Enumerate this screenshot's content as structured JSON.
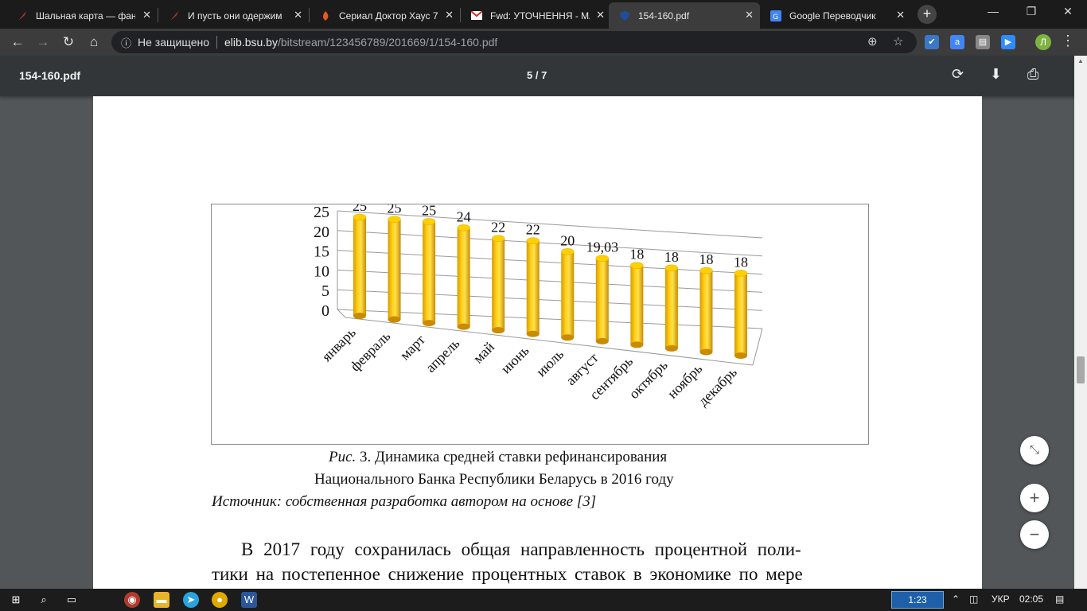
{
  "tabs": [
    {
      "title": "Шальная карта — фан",
      "favicon": "feather-icon"
    },
    {
      "title": "И пусть они одержим",
      "favicon": "feather-icon"
    },
    {
      "title": "Сериал Доктор Хаус 7",
      "favicon": "flame-icon"
    },
    {
      "title": "Fwd: УТОЧНЕННЯ - МА",
      "favicon": "gmail-icon"
    },
    {
      "title": "154-160.pdf",
      "favicon": "shield-icon"
    },
    {
      "title": "Google Переводчик",
      "favicon": "translate-icon"
    }
  ],
  "address": {
    "security": "Не защищено",
    "host": "elib.bsu.by",
    "path": "/bitstream/123456789/201669/1/154-160.pdf"
  },
  "profile_initial": "Л",
  "pdf": {
    "filename": "154-160.pdf",
    "page_indicator": "5 / 7"
  },
  "document": {
    "caption_prefix": "Рис.",
    "caption_line1": " 3. Динамика средней ставки рефинансирования",
    "caption_line2": "Национального Банка Республики Беларусь в 2016 году",
    "source_line": "Источник: собственная разработка автором на основе [3]",
    "para_line1": "В 2017 году сохранилась общая направленность процентной поли-",
    "para_line2": "тики на постепенное снижение процентных ставок в экономике по мере"
  },
  "chart_data": {
    "type": "bar",
    "categories": [
      "январь",
      "февраль",
      "март",
      "апрель",
      "май",
      "июнь",
      "июль",
      "август",
      "сентябрь",
      "октябрь",
      "ноябрь",
      "декабрь"
    ],
    "values": [
      25,
      25,
      25,
      24,
      22,
      22,
      20,
      19.03,
      18,
      18,
      18,
      18
    ],
    "data_labels": [
      "25",
      "25",
      "25",
      "24",
      "22",
      "22",
      "20",
      "19,03",
      "18",
      "18",
      "18",
      "18"
    ],
    "yticks": [
      "0",
      "5",
      "10",
      "15",
      "20",
      "25"
    ],
    "ylim": [
      0,
      25
    ],
    "grid": true,
    "style": "3d-cylinder",
    "bar_color": "#f5c400"
  },
  "taskbar": {
    "clock_box": "1:23",
    "language": "УКР",
    "time": "02:05"
  }
}
